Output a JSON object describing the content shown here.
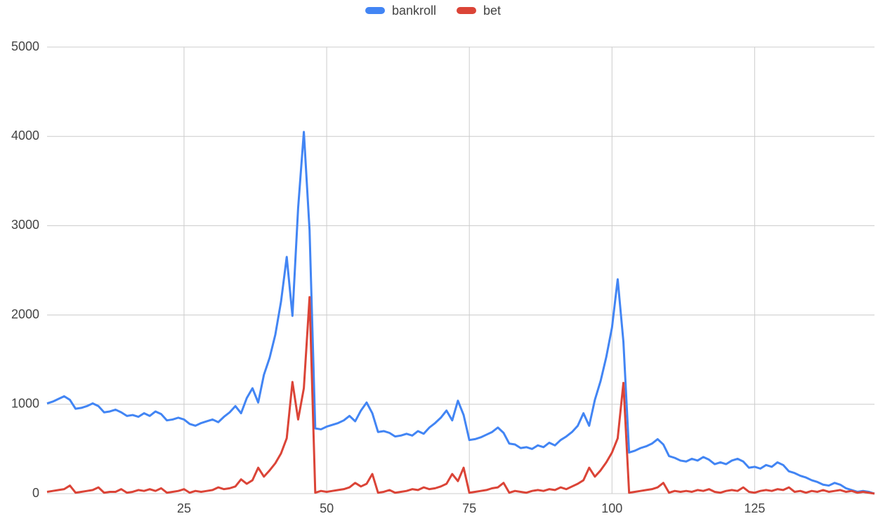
{
  "chart_data": {
    "type": "line",
    "x": [
      1,
      2,
      3,
      4,
      5,
      6,
      7,
      8,
      9,
      10,
      11,
      12,
      13,
      14,
      15,
      16,
      17,
      18,
      19,
      20,
      21,
      22,
      23,
      24,
      25,
      26,
      27,
      28,
      29,
      30,
      31,
      32,
      33,
      34,
      35,
      36,
      37,
      38,
      39,
      40,
      41,
      42,
      43,
      44,
      45,
      46,
      47,
      48,
      49,
      50,
      51,
      52,
      53,
      54,
      55,
      56,
      57,
      58,
      59,
      60,
      61,
      62,
      63,
      64,
      65,
      66,
      67,
      68,
      69,
      70,
      71,
      72,
      73,
      74,
      75,
      76,
      77,
      78,
      79,
      80,
      81,
      82,
      83,
      84,
      85,
      86,
      87,
      88,
      89,
      90,
      91,
      92,
      93,
      94,
      95,
      96,
      97,
      98,
      99,
      100,
      101,
      102,
      103,
      104,
      105,
      106,
      107,
      108,
      109,
      110,
      111,
      112,
      113,
      114,
      115,
      116,
      117,
      118,
      119,
      120,
      121,
      122,
      123,
      124,
      125,
      126,
      127,
      128,
      129,
      130,
      131,
      132,
      133,
      134,
      135,
      136,
      137,
      138,
      139,
      140,
      141,
      142,
      143,
      144,
      145,
      146
    ],
    "series": [
      {
        "name": "bankroll",
        "color": "#4285f4",
        "values": [
          1010,
          1030,
          1060,
          1090,
          1050,
          950,
          960,
          980,
          1010,
          980,
          910,
          920,
          940,
          910,
          870,
          880,
          860,
          900,
          870,
          920,
          890,
          820,
          830,
          850,
          830,
          780,
          760,
          790,
          810,
          830,
          800,
          860,
          910,
          980,
          900,
          1070,
          1180,
          1020,
          1330,
          1520,
          1780,
          2150,
          2650,
          1990,
          3200,
          4050,
          2950,
          730,
          720,
          750,
          770,
          790,
          820,
          870,
          810,
          930,
          1020,
          900,
          690,
          700,
          680,
          640,
          650,
          670,
          650,
          700,
          670,
          740,
          790,
          850,
          930,
          820,
          1040,
          880,
          600,
          610,
          630,
          660,
          690,
          740,
          680,
          560,
          550,
          510,
          520,
          500,
          540,
          520,
          570,
          540,
          600,
          640,
          690,
          760,
          900,
          760,
          1050,
          1260,
          1530,
          1860,
          2400,
          1700,
          460,
          480,
          510,
          530,
          560,
          610,
          550,
          420,
          400,
          370,
          360,
          390,
          370,
          410,
          380,
          330,
          350,
          330,
          370,
          390,
          360,
          290,
          300,
          280,
          320,
          300,
          350,
          320,
          250,
          230,
          200,
          180,
          150,
          130,
          100,
          90,
          120,
          100,
          60,
          40,
          20,
          30,
          20,
          0
        ]
      },
      {
        "name": "bet",
        "color": "#db4437",
        "values": [
          20,
          30,
          40,
          50,
          90,
          10,
          20,
          30,
          40,
          70,
          10,
          20,
          20,
          50,
          10,
          20,
          40,
          30,
          50,
          30,
          60,
          10,
          20,
          30,
          50,
          10,
          30,
          20,
          30,
          40,
          70,
          50,
          60,
          80,
          160,
          110,
          150,
          290,
          190,
          260,
          340,
          450,
          620,
          1250,
          830,
          1180,
          2200,
          10,
          30,
          20,
          30,
          40,
          50,
          70,
          120,
          80,
          110,
          220,
          10,
          20,
          40,
          10,
          20,
          30,
          50,
          40,
          70,
          50,
          60,
          80,
          110,
          220,
          140,
          290,
          10,
          20,
          30,
          40,
          60,
          70,
          120,
          10,
          30,
          20,
          10,
          30,
          40,
          30,
          50,
          40,
          70,
          50,
          80,
          110,
          150,
          290,
          190,
          260,
          350,
          460,
          620,
          1240,
          10,
          20,
          30,
          40,
          50,
          70,
          120,
          10,
          30,
          20,
          30,
          20,
          40,
          30,
          50,
          20,
          10,
          30,
          40,
          30,
          70,
          20,
          10,
          30,
          40,
          30,
          50,
          40,
          70,
          20,
          30,
          10,
          30,
          20,
          40,
          20,
          30,
          40,
          20,
          30,
          10,
          20,
          10,
          0
        ]
      }
    ],
    "xlim": [
      1,
      146
    ],
    "xticks": [
      25,
      50,
      75,
      100,
      125
    ],
    "ylim": [
      0,
      5000
    ],
    "yticks": [
      0,
      1000,
      2000,
      3000,
      4000,
      5000
    ],
    "grid": true,
    "legend": "top"
  }
}
